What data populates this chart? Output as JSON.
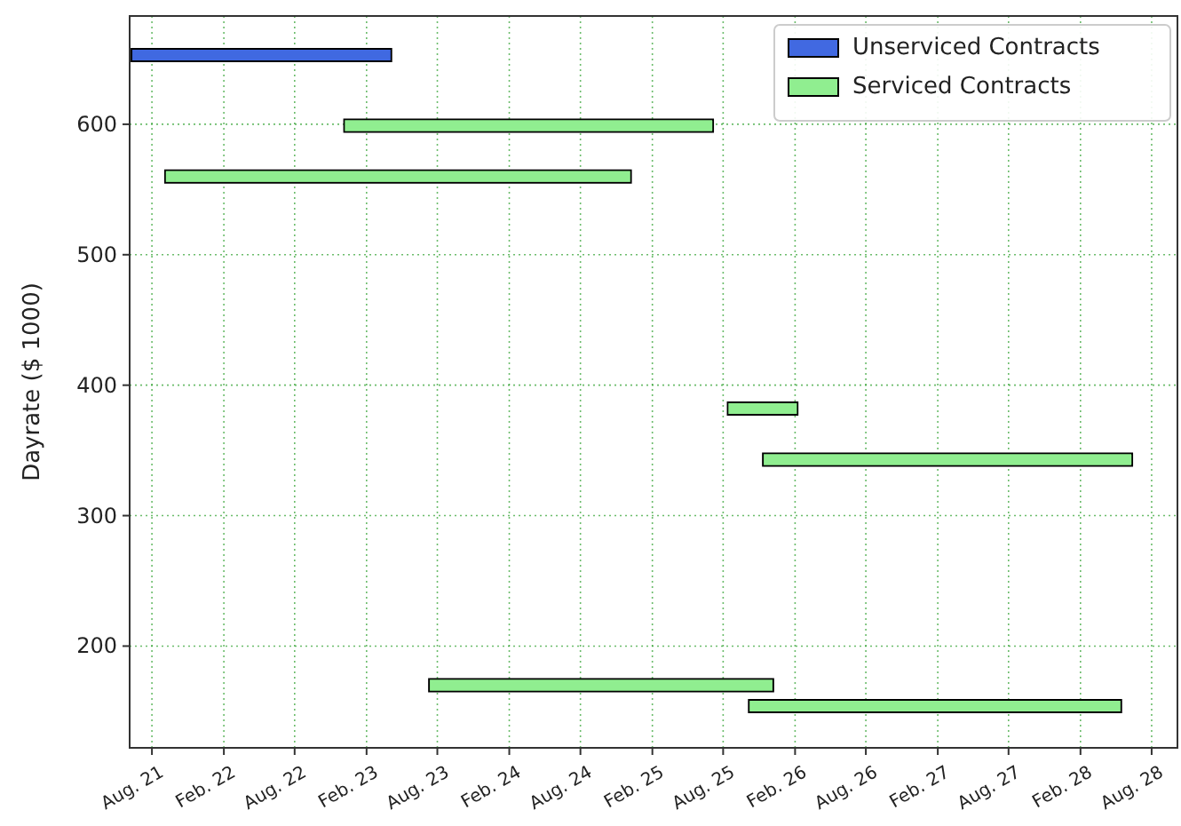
{
  "chart_data": {
    "type": "line",
    "ylabel": "Dayrate ($ 1000)",
    "xlim": [
      "2021-06-05",
      "2028-10-06"
    ],
    "ylim": [
      122,
      683
    ],
    "xticks": [
      {
        "value": "2021-08-01",
        "label": "Aug. 21"
      },
      {
        "value": "2022-02-01",
        "label": "Feb. 22"
      },
      {
        "value": "2022-08-01",
        "label": "Aug. 22"
      },
      {
        "value": "2023-02-01",
        "label": "Feb. 23"
      },
      {
        "value": "2023-08-01",
        "label": "Aug. 23"
      },
      {
        "value": "2024-02-01",
        "label": "Feb. 24"
      },
      {
        "value": "2024-08-01",
        "label": "Aug. 24"
      },
      {
        "value": "2025-02-01",
        "label": "Feb. 25"
      },
      {
        "value": "2025-08-01",
        "label": "Aug. 25"
      },
      {
        "value": "2026-02-01",
        "label": "Feb. 26"
      },
      {
        "value": "2026-08-01",
        "label": "Aug. 26"
      },
      {
        "value": "2027-02-01",
        "label": "Feb. 27"
      },
      {
        "value": "2027-08-01",
        "label": "Aug. 27"
      },
      {
        "value": "2028-02-01",
        "label": "Feb. 28"
      },
      {
        "value": "2028-08-01",
        "label": "Aug. 28"
      }
    ],
    "yticks": [
      200,
      300,
      400,
      500,
      600
    ],
    "grid": true,
    "legend": "top right",
    "series": [
      {
        "name": "Unserviced Contracts",
        "color": "#4169e1",
        "x": [
          "2021-06-12",
          "2023-04-03"
        ],
        "values": [
          653,
          653
        ]
      },
      {
        "name": "Serviced Contracts",
        "color": "#90ee90",
        "x": [
          "2022-12-08",
          "2025-07-04"
        ],
        "values": [
          599,
          599
        ]
      },
      {
        "color": "#90ee90",
        "x": [
          "2021-09-06",
          "2024-12-06"
        ],
        "values": [
          560,
          560
        ]
      },
      {
        "color": "#90ee90",
        "x": [
          "2025-08-15",
          "2026-02-05"
        ],
        "values": [
          382,
          382
        ]
      },
      {
        "color": "#90ee90",
        "x": [
          "2025-11-13",
          "2028-06-10"
        ],
        "values": [
          343,
          343
        ]
      },
      {
        "color": "#90ee90",
        "x": [
          "2023-07-13",
          "2025-12-05"
        ],
        "values": [
          170,
          170
        ]
      },
      {
        "color": "#90ee90",
        "x": [
          "2025-10-08",
          "2028-05-13"
        ],
        "values": [
          154,
          154
        ]
      }
    ]
  }
}
